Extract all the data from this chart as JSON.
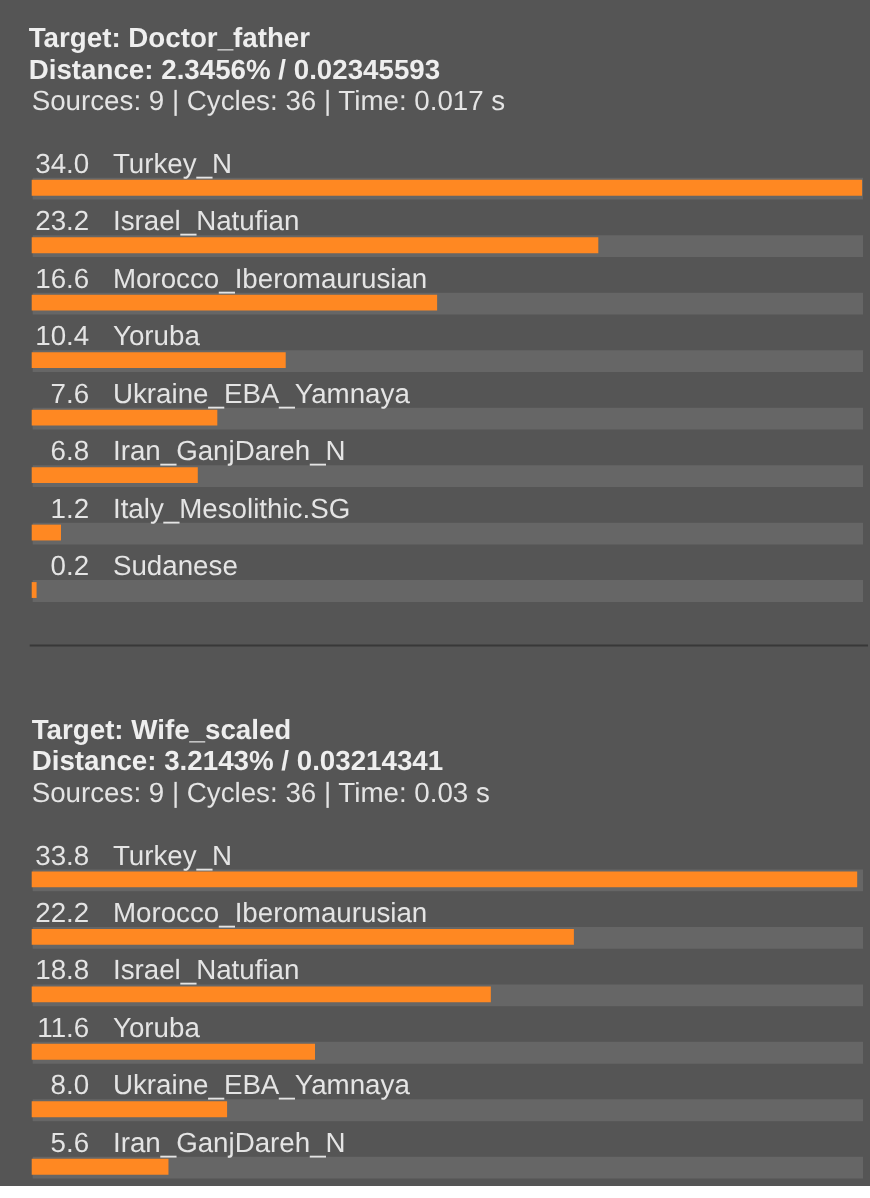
{
  "chart_data": [
    {
      "type": "bar",
      "orientation": "horizontal",
      "title": "Target: Doctor_father",
      "subtitle": "Distance: 2.3456% / 0.02345593",
      "annotations": [
        "Sources: 9 | Cycles: 36 | Time: 0.017 s"
      ],
      "categories": [
        "Turkey_N",
        "Israel_Natufian",
        "Morocco_Iberomaurusian",
        "Yoruba",
        "Ukraine_EBA_Yamnaya",
        "Iran_GanjDareh_N",
        "Italy_Mesolithic.SG",
        "Sudanese"
      ],
      "values": [
        34.0,
        23.2,
        16.6,
        10.4,
        7.6,
        6.8,
        1.2,
        0.2
      ],
      "value_labels": [
        "34.0",
        "23.2",
        "16.6",
        "10.4",
        "7.6",
        "6.8",
        "1.2",
        "0.2"
      ],
      "color": "#ff8822",
      "grid": "y",
      "tick_labels": false
    },
    {
      "type": "bar",
      "orientation": "horizontal",
      "title": "Target: Wife_scaled",
      "subtitle": "Distance: 3.2143% / 0.03214341",
      "annotations": [
        "Sources: 9 | Cycles: 36 | Time: 0.03 s"
      ],
      "categories": [
        "Turkey_N",
        "Morocco_Iberomaurusian",
        "Israel_Natufian",
        "Yoruba",
        "Ukraine_EBA_Yamnaya",
        "Iran_GanjDareh_N"
      ],
      "values": [
        33.8,
        22.2,
        18.8,
        11.6,
        8.0,
        5.6
      ],
      "value_labels": [
        "33.8",
        "22.2",
        "18.8",
        "11.6",
        "8.0",
        "5.6"
      ],
      "color": "#ff8822",
      "grid": "y",
      "tick_labels": false
    }
  ]
}
